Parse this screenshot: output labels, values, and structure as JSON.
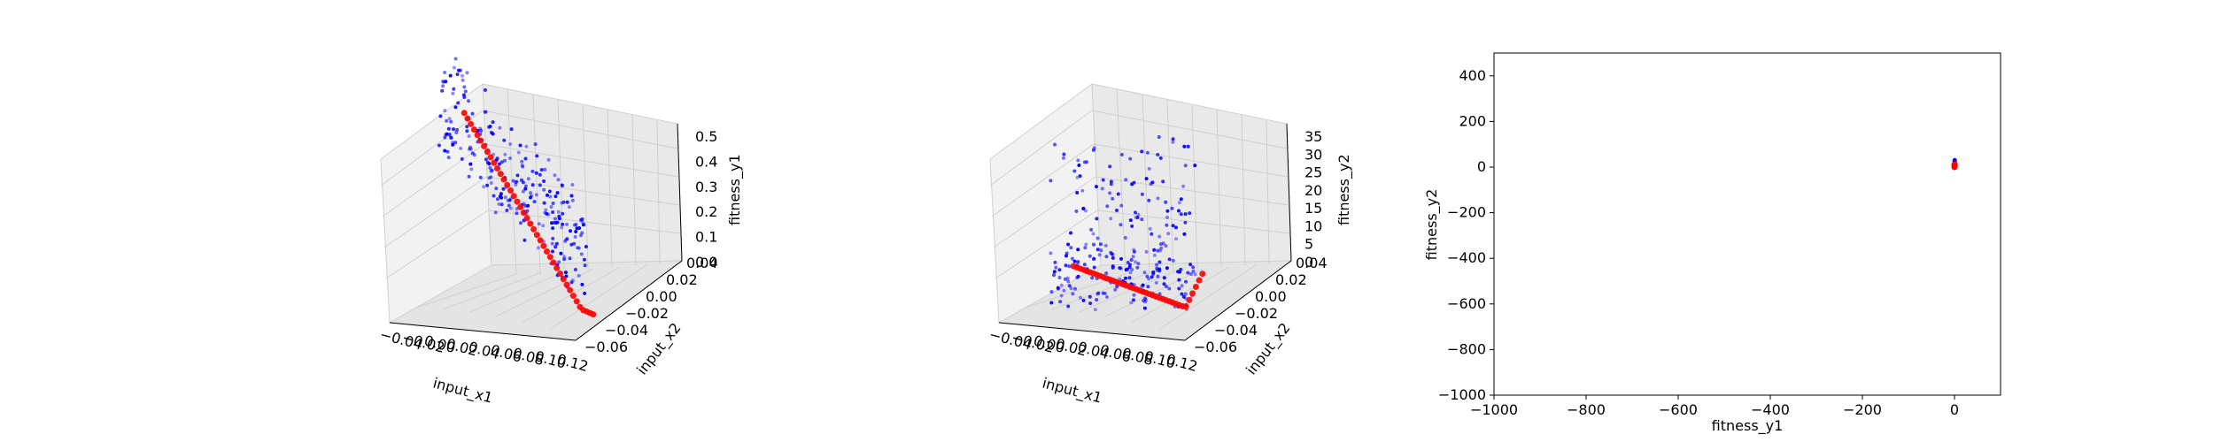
{
  "chart_data": [
    {
      "type": "scatter",
      "projection": "3d",
      "xlabel": "input_x1",
      "ylabel": "input_x2",
      "zlabel": "fitness_y1",
      "x_ticks": [
        "−0.04",
        "−0.02",
        "0.00",
        "0.02",
        "0.04",
        "0.06",
        "0.08",
        "0.10",
        "0.12"
      ],
      "y_ticks": [
        "−0.06",
        "−0.04",
        "−0.02",
        "0.00",
        "0.02",
        "0.04"
      ],
      "z_ticks": [
        "0.0",
        "0.1",
        "0.2",
        "0.3",
        "0.4",
        "0.5"
      ],
      "xlim": [
        -0.05,
        0.13
      ],
      "ylim": [
        -0.07,
        0.05
      ],
      "zlim": [
        -0.05,
        0.55
      ],
      "grid": true,
      "series": [
        {
          "color": "#0000ff",
          "marker_size": "small",
          "count": 260,
          "description_values": {
            "x_range": [
              -0.04,
              0.12
            ],
            "y_range": [
              -0.06,
              0.04
            ],
            "z_range": [
              0.0,
              0.55
            ]
          }
        },
        {
          "color": "#ff0000",
          "marker_size": "large",
          "count": 40,
          "description_values": {
            "x_range": [
              -0.01,
              0.12
            ],
            "y_range": [
              -0.05,
              0.03
            ],
            "z_range": [
              0.0,
              0.5
            ]
          }
        }
      ]
    },
    {
      "type": "scatter",
      "projection": "3d",
      "xlabel": "input_x1",
      "ylabel": "input_x2",
      "zlabel": "fitness_y2",
      "x_ticks": [
        "−0.04",
        "−0.02",
        "0.00",
        "0.02",
        "0.04",
        "0.06",
        "0.08",
        "0.10",
        "0.12"
      ],
      "y_ticks": [
        "−0.06",
        "−0.04",
        "−0.02",
        "0.00",
        "0.02",
        "0.04"
      ],
      "z_ticks": [
        "0",
        "5",
        "10",
        "15",
        "20",
        "25",
        "30",
        "35"
      ],
      "xlim": [
        -0.05,
        0.13
      ],
      "ylim": [
        -0.07,
        0.05
      ],
      "zlim": [
        -2,
        38
      ],
      "grid": true,
      "series": [
        {
          "color": "#0000ff",
          "marker_size": "small",
          "count": 260,
          "description_values": {
            "x_range": [
              -0.04,
              0.12
            ],
            "y_range": [
              -0.06,
              0.04
            ],
            "z_range": [
              0,
              36
            ]
          }
        },
        {
          "color": "#ff0000",
          "marker_size": "large",
          "count": 40,
          "description_values": {
            "x_range": [
              -0.01,
              0.12
            ],
            "y_range": [
              -0.05,
              0.03
            ],
            "z_range": [
              0,
              12
            ]
          }
        }
      ]
    },
    {
      "type": "scatter",
      "xlabel": "fitness_y1",
      "ylabel": "fitness_y2",
      "xlim": [
        -1000,
        100
      ],
      "ylim": [
        -1000,
        500
      ],
      "x_ticks": [
        "−1000",
        "−800",
        "−600",
        "−400",
        "−200",
        "0"
      ],
      "x_tick_values": [
        -1000,
        -800,
        -600,
        -400,
        -200,
        0
      ],
      "y_ticks": [
        "−1000",
        "−800",
        "−600",
        "−400",
        "−200",
        "0",
        "200",
        "400"
      ],
      "y_tick_values": [
        -1000,
        -800,
        -600,
        -400,
        -200,
        0,
        200,
        400
      ],
      "grid": false,
      "series": [
        {
          "color": "#0000ff",
          "x": [
            0.1,
            0.2,
            0.3,
            0.2,
            0.4
          ],
          "y": [
            0,
            12,
            25,
            5,
            30
          ]
        },
        {
          "color": "#ff0000",
          "x": [
            0.05,
            0.1,
            0.2,
            0.3,
            0.15,
            0.25
          ],
          "y": [
            0,
            3,
            8,
            12,
            6,
            10
          ]
        }
      ]
    }
  ]
}
